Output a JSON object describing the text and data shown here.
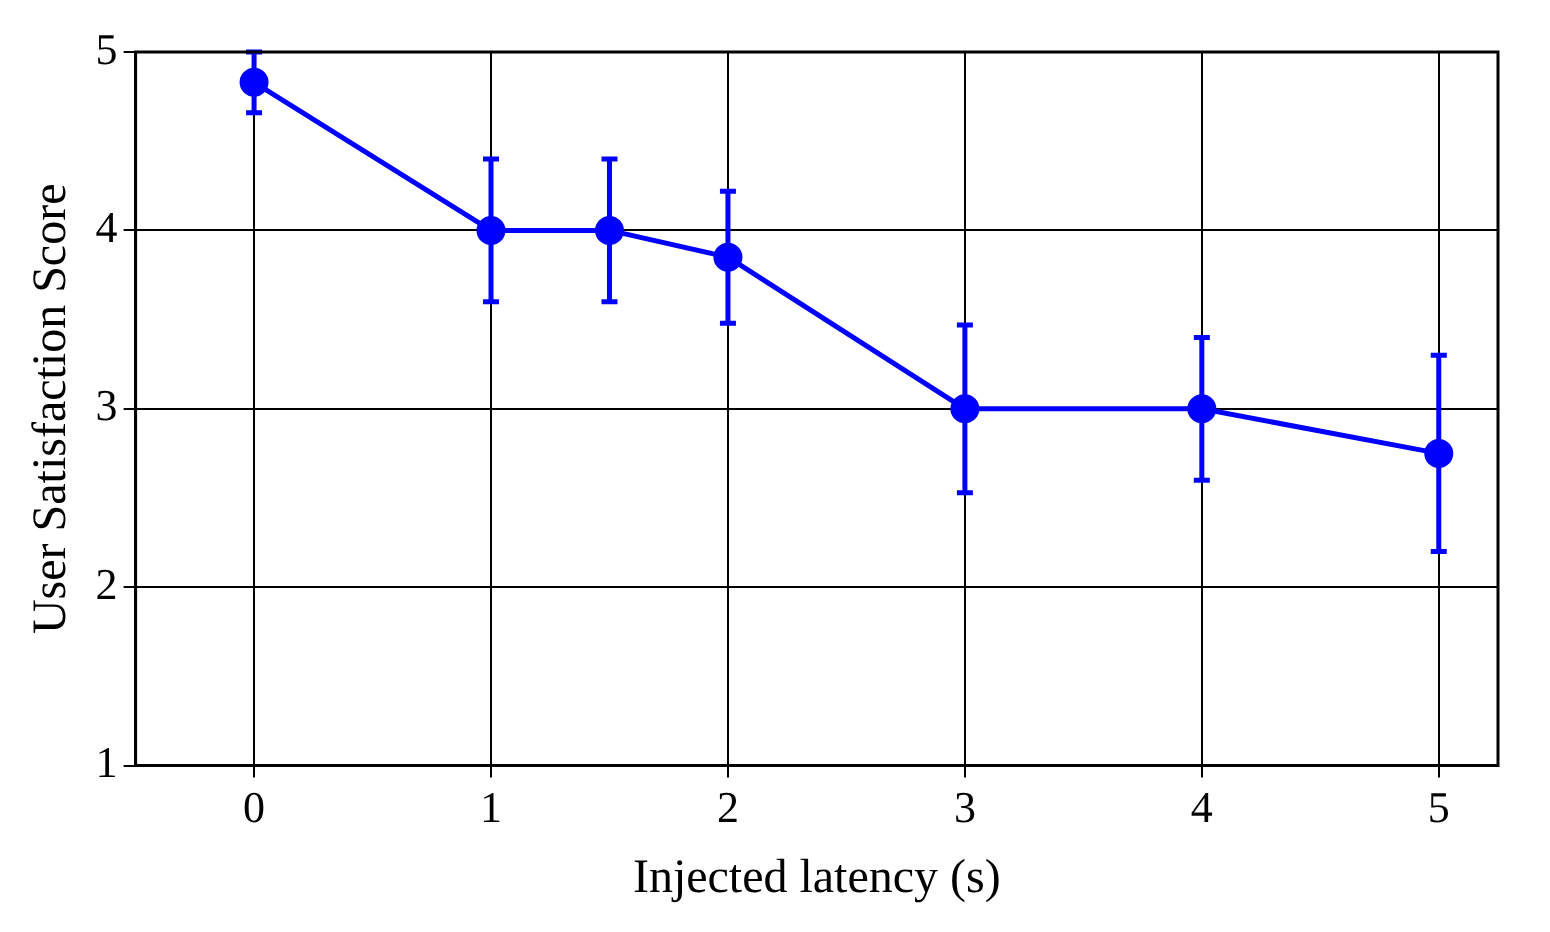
{
  "chart_data": {
    "type": "line",
    "xlabel": "Injected latency (s)",
    "ylabel": "User Satisfaction Score",
    "x": [
      0,
      1,
      1.5,
      2,
      3,
      4,
      5
    ],
    "series": [
      {
        "color": "#0000ff",
        "values": [
          4.83,
          4.0,
          4.0,
          3.85,
          3.0,
          3.0,
          2.75
        ],
        "errors": [
          0.17,
          0.4,
          0.4,
          0.37,
          0.47,
          0.4,
          0.55
        ]
      }
    ],
    "xlim": [
      -0.5,
      5.25
    ],
    "xticks": [
      0,
      1,
      2,
      3,
      4,
      5
    ],
    "ylim": [
      1,
      5
    ],
    "yticks": [
      1,
      2,
      3,
      4,
      5
    ],
    "grid": true,
    "marker": "circle",
    "line_style": "solid",
    "legend": false
  }
}
